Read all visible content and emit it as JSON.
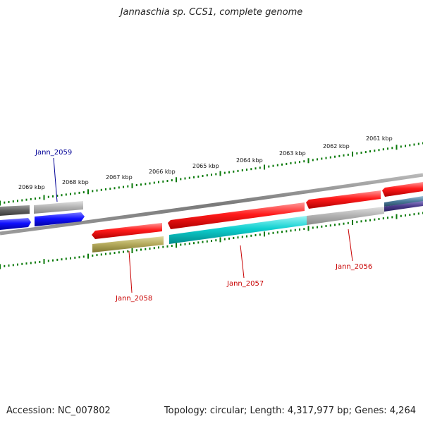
{
  "title": "Jannaschia sp. CCS1, complete genome",
  "footer": {
    "accession": "Accession: NC_007802",
    "summary": "Topology: circular; Length: 4,317,977 bp; Genes: 4,264"
  },
  "scale": {
    "ticks": [
      "2069 kbp",
      "2068 kbp",
      "2067 kbp",
      "2066 kbp",
      "2065 kbp",
      "2064 kbp",
      "2063 kbp",
      "2062 kbp",
      "2061 kbp"
    ]
  },
  "genes": {
    "labels": [
      "Jann_2059",
      "Jann_2058",
      "Jann_2057",
      "Jann_2056"
    ]
  },
  "colors": {
    "tick": "#0a7a0a",
    "backbone": "#888888",
    "red": "#e00000",
    "blue": "#0000ee",
    "cyan": "#00c8c8",
    "olive": "#b0a860",
    "gray": "#a8a8a8",
    "dark_gray": "#606060",
    "steel_blue": "#4a7a9a",
    "purple": "#4a3a8a",
    "label_red": "#c80000",
    "label_blue": "#000096"
  }
}
